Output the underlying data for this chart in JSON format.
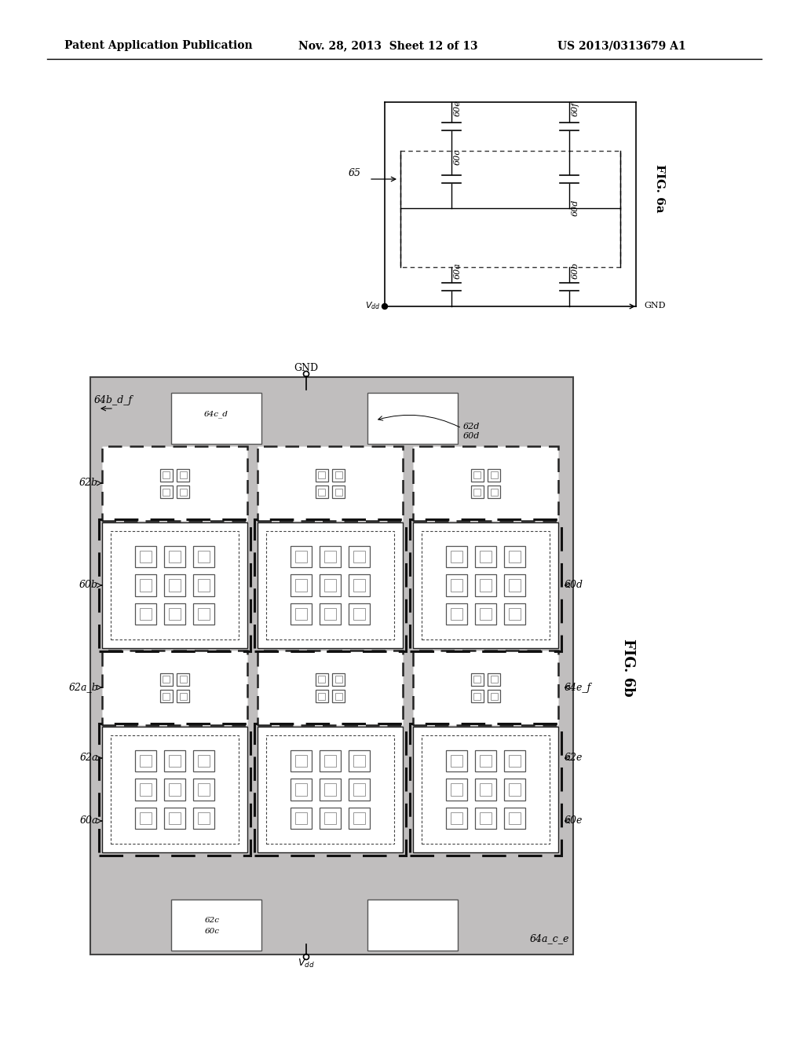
{
  "header_left": "Patent Application Publication",
  "header_mid": "Nov. 28, 2013  Sheet 12 of 13",
  "header_right": "US 2013/0313679 A1",
  "bg_color": "#ffffff",
  "gray_fill": "#c0bebe",
  "white_fill": "#ffffff",
  "dark_line": "#333333",
  "mid_line": "#555555"
}
